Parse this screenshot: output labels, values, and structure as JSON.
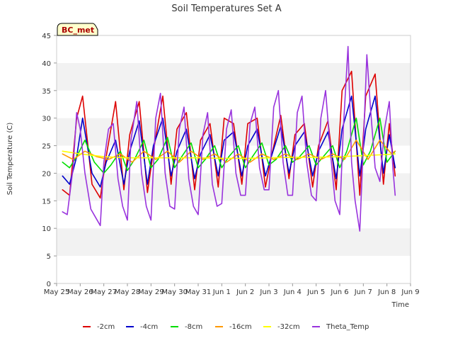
{
  "chart_data": {
    "type": "line",
    "title": "Soil Temperatures Set A",
    "xlabel": "Time",
    "ylabel": "Soil Temperature (C)",
    "station_label": "BC_met",
    "ylim": [
      0,
      45
    ],
    "xlim": [
      0,
      15
    ],
    "yticks": [
      0,
      5,
      10,
      15,
      20,
      25,
      30,
      35,
      40,
      45
    ],
    "xticks": [
      {
        "x": 0,
        "label": "May 25"
      },
      {
        "x": 1,
        "label": "May 26"
      },
      {
        "x": 2,
        "label": "May 27"
      },
      {
        "x": 3,
        "label": "May 28"
      },
      {
        "x": 4,
        "label": "May 29"
      },
      {
        "x": 5,
        "label": "May 30"
      },
      {
        "x": 6,
        "label": "May 31"
      },
      {
        "x": 7,
        "label": "Jun 1"
      },
      {
        "x": 8,
        "label": "Jun 2"
      },
      {
        "x": 9,
        "label": "Jun 3"
      },
      {
        "x": 10,
        "label": "Jun 4"
      },
      {
        "x": 11,
        "label": "Jun 5"
      },
      {
        "x": 12,
        "label": "Jun 6"
      },
      {
        "x": 13,
        "label": "Jun 7"
      },
      {
        "x": 14,
        "label": "Jun 8"
      },
      {
        "x": 15,
        "label": "Jun 9"
      }
    ],
    "grid": "horizontal-bands",
    "legend": "bottom",
    "series": [
      {
        "name": "-2cm",
        "color": "#dd0000",
        "x": [
          0.25,
          0.55,
          0.85,
          1.1,
          1.5,
          1.85,
          2.1,
          2.5,
          2.85,
          3.1,
          3.5,
          3.85,
          4.1,
          4.5,
          4.85,
          5.1,
          5.5,
          5.85,
          6.1,
          6.5,
          6.85,
          7.1,
          7.5,
          7.85,
          8.1,
          8.5,
          8.85,
          9.1,
          9.5,
          9.85,
          10.1,
          10.5,
          10.85,
          11.1,
          11.5,
          11.85,
          12.1,
          12.5,
          12.85,
          13.1,
          13.5,
          13.85,
          14.1,
          14.35
        ],
        "y": [
          17,
          16,
          30,
          34,
          18,
          15.5,
          23,
          33,
          17,
          27,
          33,
          16.5,
          24,
          34,
          18,
          28,
          31,
          17,
          26,
          29,
          17.5,
          30,
          29,
          18,
          29,
          30,
          17.5,
          23,
          30.5,
          19,
          27,
          29,
          17.5,
          25,
          29.5,
          17,
          35,
          38.5,
          16,
          34,
          38,
          18,
          29,
          19.5
        ]
      },
      {
        "name": "-4cm",
        "color": "#0000cc",
        "x": [
          0.25,
          0.55,
          0.85,
          1.1,
          1.5,
          1.85,
          2.1,
          2.5,
          2.85,
          3.1,
          3.5,
          3.85,
          4.1,
          4.5,
          4.85,
          5.1,
          5.5,
          5.85,
          6.1,
          6.5,
          6.85,
          7.1,
          7.5,
          7.85,
          8.1,
          8.5,
          8.85,
          9.1,
          9.5,
          9.85,
          10.1,
          10.5,
          10.85,
          11.1,
          11.5,
          11.85,
          12.1,
          12.5,
          12.85,
          13.1,
          13.5,
          13.85,
          14.1,
          14.35
        ],
        "y": [
          19.5,
          18,
          23,
          30,
          20,
          17.5,
          22,
          26,
          18,
          24,
          29.5,
          18,
          25,
          30,
          19.5,
          24,
          28,
          19,
          23.5,
          27,
          19.5,
          26,
          27.5,
          19.5,
          25,
          28,
          19.5,
          23,
          28.5,
          20,
          25,
          27.5,
          19.5,
          24,
          27.5,
          19,
          28,
          34,
          19.5,
          28,
          34,
          20,
          27,
          21
        ]
      },
      {
        "name": "-8cm",
        "color": "#00dd00",
        "x": [
          0.25,
          0.55,
          0.85,
          1.2,
          1.6,
          2.0,
          2.3,
          2.7,
          3.0,
          3.3,
          3.7,
          4.0,
          4.3,
          4.7,
          5.0,
          5.3,
          5.7,
          6.0,
          6.3,
          6.7,
          7.0,
          7.3,
          7.7,
          8.0,
          8.3,
          8.7,
          9.0,
          9.3,
          9.7,
          10.0,
          10.3,
          10.7,
          11.0,
          11.3,
          11.7,
          12.0,
          12.3,
          12.7,
          13.0,
          13.3,
          13.7,
          14.0,
          14.35
        ],
        "y": [
          22,
          21,
          23,
          26,
          22,
          20,
          21.5,
          24,
          20.5,
          22.5,
          26,
          21,
          22.5,
          26.5,
          21,
          23,
          25.5,
          21,
          22.5,
          25,
          21,
          23,
          25,
          21,
          23,
          25.5,
          21.5,
          22.5,
          25,
          22,
          23,
          25,
          21.5,
          23,
          25,
          21,
          24,
          30,
          21.5,
          24,
          30,
          22,
          24
        ]
      },
      {
        "name": "-16cm",
        "color": "#ff9900",
        "x": [
          0.25,
          0.7,
          1.2,
          1.7,
          2.2,
          2.7,
          3.2,
          3.7,
          4.2,
          4.7,
          5.2,
          5.7,
          6.2,
          6.7,
          7.2,
          7.7,
          8.2,
          8.7,
          9.2,
          9.7,
          10.2,
          10.7,
          11.2,
          11.7,
          12.2,
          12.7,
          13.2,
          13.7,
          14.2,
          14.35
        ],
        "y": [
          23.5,
          22.5,
          24,
          23,
          22.5,
          23.5,
          22,
          24,
          22.5,
          24,
          22,
          24,
          22.5,
          23.5,
          22,
          23.5,
          22,
          23.5,
          22.5,
          23.5,
          22.5,
          23.5,
          22.5,
          23.5,
          22.5,
          26,
          22.5,
          26,
          23.5,
          24
        ]
      },
      {
        "name": "-32cm",
        "color": "#ffff00",
        "x": [
          0.25,
          1.0,
          2.0,
          3.0,
          4.0,
          5.0,
          6.0,
          7.0,
          8.0,
          9.0,
          10.0,
          11.0,
          12.0,
          13.0,
          14.0,
          14.35
        ],
        "y": [
          24,
          23.5,
          23,
          22.8,
          22.8,
          22.8,
          22.8,
          22.7,
          22.7,
          22.8,
          22.9,
          22.9,
          23,
          23.2,
          23.4,
          23.5
        ]
      },
      {
        "name": "Theta_Temp",
        "color": "#9933dd",
        "x": [
          0.25,
          0.45,
          0.7,
          0.85,
          1.0,
          1.2,
          1.45,
          1.65,
          1.85,
          2.0,
          2.2,
          2.4,
          2.6,
          2.8,
          3.0,
          3.15,
          3.4,
          3.6,
          3.8,
          4.0,
          4.2,
          4.4,
          4.6,
          4.8,
          5.0,
          5.2,
          5.4,
          5.6,
          5.8,
          6.0,
          6.2,
          6.4,
          6.6,
          6.8,
          7.0,
          7.2,
          7.4,
          7.6,
          7.8,
          8.0,
          8.2,
          8.4,
          8.6,
          8.8,
          9.0,
          9.2,
          9.4,
          9.6,
          9.8,
          10.0,
          10.2,
          10.4,
          10.6,
          10.8,
          11.0,
          11.2,
          11.4,
          11.6,
          11.8,
          12.0,
          12.15,
          12.35,
          12.5,
          12.65,
          12.85,
          13.0,
          13.15,
          13.3,
          13.5,
          13.7,
          13.9,
          14.1,
          14.25,
          14.35
        ],
        "y": [
          13,
          12.5,
          21,
          31,
          28,
          20,
          13.5,
          12,
          10.5,
          22,
          28,
          29,
          19,
          14,
          11.5,
          26,
          33,
          20,
          14,
          11.5,
          30,
          34.5,
          20,
          14,
          13.5,
          28,
          32,
          19,
          14,
          12.5,
          27,
          31,
          18,
          14,
          14.5,
          28,
          31.5,
          20,
          16,
          16,
          29,
          32,
          21,
          17,
          17,
          32,
          35,
          22,
          16,
          16,
          31,
          34,
          22,
          16,
          15,
          30,
          35,
          24,
          15,
          12.5,
          28,
          43,
          22,
          15,
          9.5,
          25,
          41.5,
          32,
          21,
          18.5,
          28,
          33,
          21,
          16
        ]
      }
    ]
  }
}
